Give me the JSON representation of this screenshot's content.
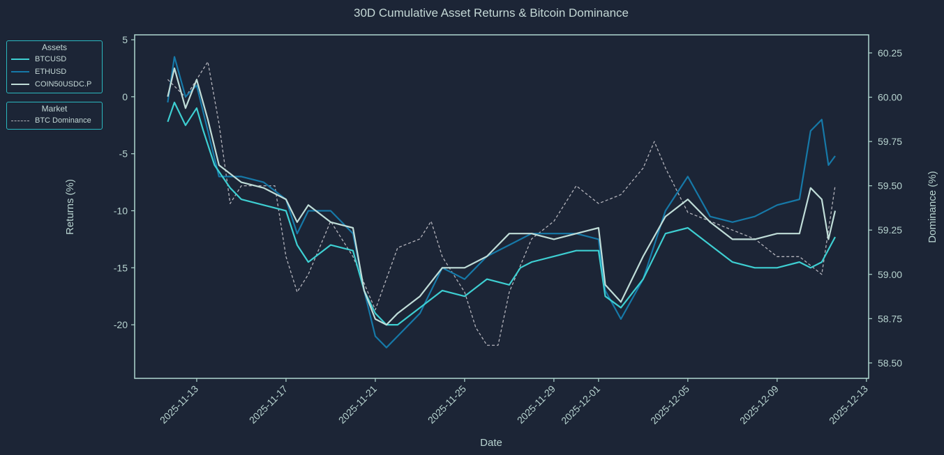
{
  "chart_data": {
    "type": "line",
    "title": "30D Cumulative Asset Returns & Bitcoin Dominance",
    "xlabel": "Date",
    "ylabel": "Returns (%)",
    "y2label": "Dominance (%)",
    "x_unit": "days offset from 2025-11-13",
    "xlim": [
      -2.78,
      30.1
    ],
    "ylim": [
      -24.7,
      5.43
    ],
    "y2lim": [
      58.413,
      60.352
    ],
    "xticks": [
      {
        "day": 0,
        "label": "2025-11-13"
      },
      {
        "day": 4,
        "label": "2025-11-17"
      },
      {
        "day": 8,
        "label": "2025-11-21"
      },
      {
        "day": 12,
        "label": "2025-11-25"
      },
      {
        "day": 16,
        "label": "2025-11-29"
      },
      {
        "day": 18,
        "label": "2025-12-01"
      },
      {
        "day": 22,
        "label": "2025-12-05"
      },
      {
        "day": 26,
        "label": "2025-12-09"
      },
      {
        "day": 30,
        "label": "2025-12-13"
      }
    ],
    "yticks": [
      5,
      0,
      -5,
      -10,
      -15,
      -20
    ],
    "y2ticks": [
      "60.25",
      "60.00",
      "59.75",
      "59.50",
      "59.25",
      "59.00",
      "58.75",
      "58.50"
    ],
    "legends": [
      {
        "title": "Assets",
        "entries": [
          "BTCUSD",
          "ETHUSD",
          "COIN50USDC.P"
        ]
      },
      {
        "title": "Market",
        "entries": [
          "BTC Dominance"
        ]
      }
    ],
    "series": [
      {
        "name": "BTCUSD",
        "axis": "left",
        "color": "#3ecfd2",
        "dashed": false,
        "x": [
          -1.3,
          -1.0,
          -0.5,
          0,
          0.3,
          0.8,
          1.5,
          2,
          3,
          4,
          4.5,
          5,
          6,
          7,
          7.5,
          8,
          8.5,
          9,
          10,
          11,
          12,
          13,
          14,
          14.5,
          15,
          16,
          17,
          18,
          18.3,
          19,
          20,
          21,
          22,
          23,
          24,
          25,
          26,
          27,
          27.5,
          28,
          28.6
        ],
        "values": [
          -2.2,
          -0.5,
          -2.5,
          -1,
          -3,
          -6,
          -8,
          -9,
          -9.5,
          -10,
          -13,
          -14.5,
          -13,
          -13.5,
          -17,
          -19,
          -20,
          -20,
          -18.5,
          -17,
          -17.5,
          -16,
          -16.5,
          -15,
          -14.5,
          -14,
          -13.5,
          -13.5,
          -17.5,
          -18.5,
          -16,
          -12,
          -11.5,
          -13,
          -14.5,
          -15,
          -15,
          -14.5,
          -15,
          -14.5,
          -12.3
        ]
      },
      {
        "name": "ETHUSD",
        "axis": "left",
        "color": "#1679a8",
        "dashed": false,
        "x": [
          -1.3,
          -1.0,
          -0.5,
          0,
          0.5,
          1,
          2,
          3,
          4,
          4.5,
          5,
          6,
          7,
          7.5,
          8,
          8.5,
          9,
          10,
          11,
          12,
          13,
          14,
          15,
          16,
          17,
          18,
          18.3,
          19,
          20,
          21,
          22,
          23,
          24,
          25,
          26,
          27,
          27.5,
          28,
          28.3,
          28.6
        ],
        "values": [
          -0.5,
          3.5,
          0,
          1,
          -3,
          -7,
          -7,
          -7.5,
          -9,
          -12,
          -10,
          -10,
          -12,
          -17,
          -21,
          -22,
          -21,
          -19,
          -15,
          -16,
          -14,
          -13,
          -12,
          -12,
          -12,
          -12.5,
          -17,
          -19.5,
          -16,
          -10,
          -7,
          -10.5,
          -11,
          -10.5,
          -9.5,
          -9,
          -3,
          -2,
          -6,
          -5.2
        ]
      },
      {
        "name": "COIN50USDC.P",
        "axis": "left",
        "color": "#c0ddd8",
        "dashed": false,
        "x": [
          -1.3,
          -1,
          -0.5,
          0,
          0.5,
          1,
          2,
          3,
          4,
          4.5,
          5,
          6,
          7,
          7.5,
          8,
          8.5,
          9,
          10,
          11,
          12,
          13,
          14,
          15,
          16,
          17,
          18,
          18.3,
          19,
          20,
          21,
          22,
          23,
          24,
          25,
          26,
          27,
          27.5,
          28,
          28.3,
          28.6
        ],
        "values": [
          0,
          2.5,
          -1,
          1.5,
          -2,
          -6,
          -7.5,
          -8,
          -9,
          -11,
          -9.5,
          -11,
          -11.5,
          -17,
          -19.5,
          -20,
          -19,
          -17.5,
          -15,
          -15,
          -14,
          -12,
          -12,
          -12.5,
          -12,
          -11.5,
          -16.5,
          -18,
          -14,
          -10.5,
          -9,
          -11,
          -12.5,
          -12.5,
          -12,
          -12,
          -8,
          -9,
          -12.5,
          -10
        ]
      },
      {
        "name": "BTC Dominance",
        "axis": "right",
        "color": "#b4b4bc",
        "dashed": true,
        "x": [
          -1.3,
          -0.5,
          0.5,
          1,
          1.5,
          2,
          3,
          3.5,
          4,
          4.5,
          5,
          6,
          7,
          8,
          9,
          10,
          10.5,
          11,
          12,
          12.5,
          13,
          13.5,
          14,
          15,
          16,
          17,
          18,
          19,
          20,
          20.5,
          21,
          22,
          23,
          24,
          25,
          26,
          27,
          28,
          28.6
        ],
        "values": [
          60.1,
          60.0,
          60.2,
          59.85,
          59.4,
          59.5,
          59.5,
          59.5,
          59.1,
          58.9,
          59.0,
          59.3,
          59.1,
          58.8,
          59.15,
          59.2,
          59.3,
          59.1,
          58.9,
          58.7,
          58.6,
          58.6,
          58.9,
          59.2,
          59.3,
          59.5,
          59.4,
          59.45,
          59.6,
          59.75,
          59.6,
          59.35,
          59.3,
          59.25,
          59.2,
          59.1,
          59.1,
          59.0,
          59.5
        ]
      }
    ]
  }
}
